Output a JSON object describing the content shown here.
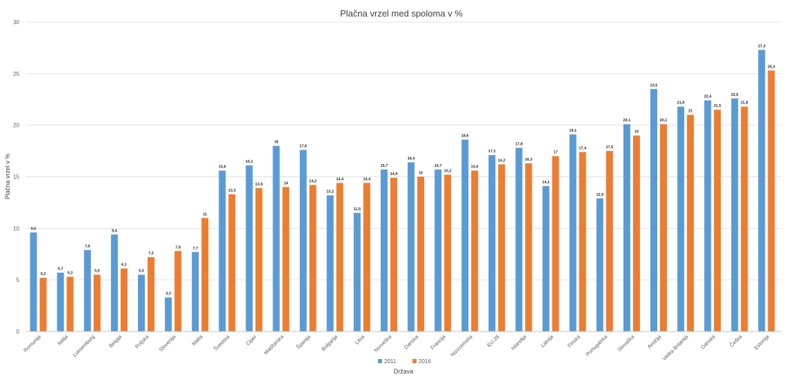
{
  "chart_data": {
    "type": "bar",
    "title": "Plačna vrzel med spoloma v %",
    "xlabel": "Država",
    "ylabel": "Plačna vrzel v %",
    "ylim": [
      0,
      30
    ],
    "yticks": [
      0,
      5,
      10,
      15,
      20,
      25,
      30
    ],
    "grid": true,
    "legend_position": "bottom",
    "categories": [
      "Romunija",
      "Italija",
      "Luksemburg",
      "Belgija",
      "Poljska",
      "Slovenija",
      "Malta",
      "Švedska",
      "Ciper",
      "Madžarska",
      "Španija",
      "Bolgarija",
      "Litva",
      "Norveška",
      "Danska",
      "Francija",
      "Nizozemska",
      "EU-28",
      "Islandija",
      "Latvija",
      "Finska",
      "Portugalska",
      "Slovaška",
      "Avstrija",
      "Velika Britanija",
      "Danska",
      "Češka",
      "Estonija"
    ],
    "series": [
      {
        "name": "2011",
        "color": "#5b9bd5",
        "values": [
          9.6,
          5.7,
          7.9,
          9.4,
          5.5,
          3.3,
          7.7,
          15.6,
          16.1,
          18,
          17.6,
          13.2,
          11.5,
          15.7,
          16.4,
          15.7,
          18.6,
          17.1,
          17.8,
          14.1,
          19.1,
          12.9,
          20.1,
          23.5,
          21.8,
          22.4,
          22.6,
          27.3
        ],
        "labels": [
          "9,6",
          "5,7",
          "7,9",
          "9,4",
          "5,5",
          "3,3",
          "7,7",
          "15,6",
          "16,1",
          "18",
          "17,6",
          "13,2",
          "11,5",
          "15,7",
          "16,4",
          "15,7",
          "18,6",
          "17,1",
          "17,8",
          "14,1",
          "19,1",
          "12,9",
          "20,1",
          "23,5",
          "21,8",
          "22,4",
          "22,6",
          "27,3"
        ]
      },
      {
        "name": "2016",
        "color": "#ed7d31",
        "values": [
          5.2,
          5.3,
          5.5,
          6.1,
          7.2,
          7.8,
          11,
          13.3,
          13.9,
          14,
          14.2,
          14.4,
          14.4,
          14.9,
          15,
          15.2,
          15.6,
          16.2,
          16.3,
          17,
          17.4,
          17.5,
          19,
          20.1,
          21,
          21.5,
          21.8,
          25.3
        ],
        "labels": [
          "5,2",
          "5,3",
          "5,5",
          "6,1",
          "7,2",
          "7,8",
          "11",
          "13,3",
          "13,9",
          "14",
          "14,2",
          "14,4",
          "14,4",
          "14,9",
          "15",
          "15,2",
          "15,6",
          "16,2",
          "16,3",
          "17",
          "17,4",
          "17,5",
          "19",
          "20,1",
          "21",
          "21,5",
          "21,8",
          "25,3"
        ]
      }
    ]
  }
}
